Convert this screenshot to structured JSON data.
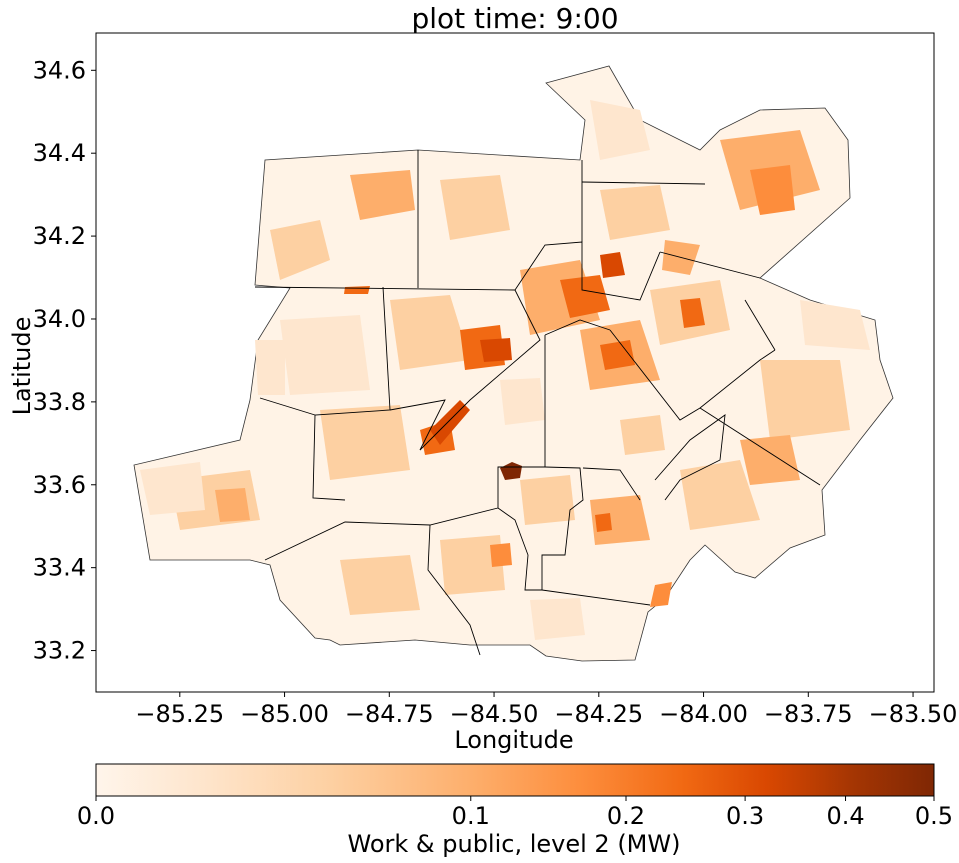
{
  "title": "plot time: 9:00",
  "x_axis": {
    "label": "Longitude",
    "ticks": [
      {
        "value": -85.25,
        "label": "−85.25"
      },
      {
        "value": -85.0,
        "label": "−85.00"
      },
      {
        "value": -84.75,
        "label": "−84.75"
      },
      {
        "value": -84.5,
        "label": "−84.50"
      },
      {
        "value": -84.25,
        "label": "−84.25"
      },
      {
        "value": -84.0,
        "label": "−84.00"
      },
      {
        "value": -83.75,
        "label": "−83.75"
      },
      {
        "value": -83.5,
        "label": "−83.50"
      }
    ],
    "range": [
      -85.45,
      -83.45
    ]
  },
  "y_axis": {
    "label": "Latitude",
    "ticks": [
      {
        "value": 33.2,
        "label": "33.2"
      },
      {
        "value": 33.4,
        "label": "33.4"
      },
      {
        "value": 33.6,
        "label": "33.6"
      },
      {
        "value": 33.8,
        "label": "33.8"
      },
      {
        "value": 34.0,
        "label": "34.0"
      },
      {
        "value": 34.2,
        "label": "34.2"
      },
      {
        "value": 34.4,
        "label": "34.4"
      },
      {
        "value": 34.6,
        "label": "34.6"
      }
    ],
    "range": [
      33.1,
      34.69
    ]
  },
  "colorbar": {
    "label": "Work & public, level 2 (MW)",
    "colormap": "Oranges",
    "scale": "power",
    "ticks": [
      {
        "value": 0.0,
        "label": "0.0"
      },
      {
        "value": 0.1,
        "label": "0.1"
      },
      {
        "value": 0.2,
        "label": "0.2"
      },
      {
        "value": 0.3,
        "label": "0.3"
      },
      {
        "value": 0.4,
        "label": "0.4"
      },
      {
        "value": 0.5,
        "label": "0.5"
      }
    ],
    "colors": [
      "#fff5eb",
      "#fee6ce",
      "#fdd0a2",
      "#fdae6b",
      "#fd8d3c",
      "#f16913",
      "#d94801",
      "#a63603",
      "#7f2704"
    ]
  },
  "map": {
    "county_boundary_color": "#000000",
    "tract_fill_range": "#fff5eb to #7f2704",
    "peak_value_location": {
      "lon": -84.41,
      "lat": 33.645
    }
  }
}
